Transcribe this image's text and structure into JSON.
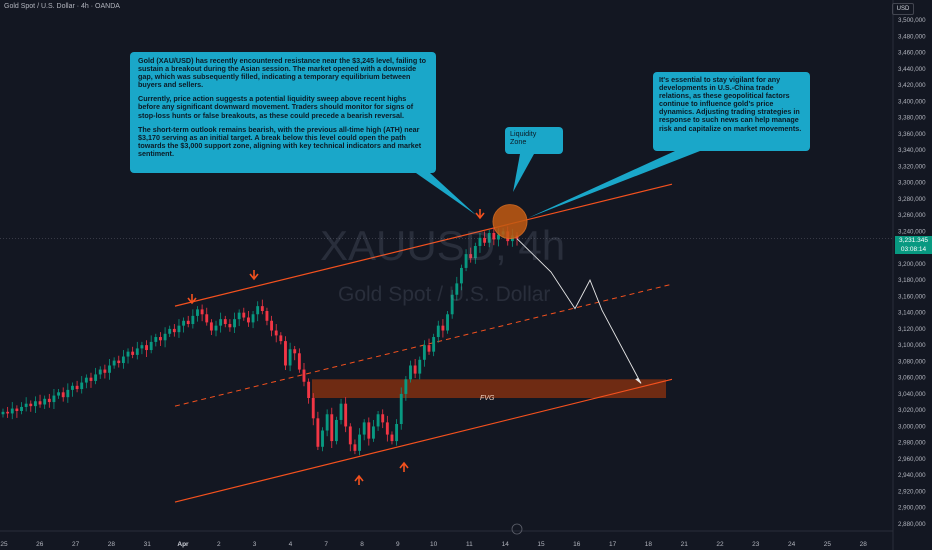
{
  "header": {
    "title": "Gold Spot / U.S. Dollar · 4h · OANDA",
    "currency": "USD"
  },
  "watermark": {
    "symbol": "XAUUSD, 4h",
    "name": "Gold Spot / U.S. Dollar"
  },
  "callouts": {
    "left": [
      "Gold (XAU/USD) has recently encountered resistance near the $3,245 level, failing to sustain a breakout during the Asian session. The market opened with a downside gap, which was subsequently filled, indicating a temporary equilibrium between buyers and sellers.",
      "Currently, price action suggests a potential liquidity sweep above recent highs before any significant downward movement. Traders should monitor for signs of stop-loss hunts or false breakouts, as these could precede a bearish reversal.",
      "The short-term outlook remains bearish, with the previous all-time high (ATH) near $3,170 serving as an initial target. A break below this level could open the path towards the $3,000 support zone, aligning with key technical indicators and market sentiment."
    ],
    "right": "It's essential to stay vigilant for any developments in U.S.-China trade relations, as these geopolitical factors continue to influence gold's price dynamics. Adjusting trading strategies in response to such news can help manage risk and capitalize on market movements.",
    "zone": "Liquidity\nZone"
  },
  "fvg_label": "FVG",
  "last_price": {
    "price": "3,231.345",
    "countdown": "03:08:14"
  },
  "colors": {
    "background": "#131722",
    "bull": "#089981",
    "bear": "#f23645",
    "channel": "#f4511e",
    "callout": "#1aa7c9",
    "fvg": "#7a2e12",
    "liquidity_zone": "#c25a12"
  },
  "chart_data": {
    "type": "candlestick",
    "title": "Gold Spot / U.S. Dollar · 4h · OANDA",
    "currency": "USD",
    "timeframe": "4h",
    "x_axis_labels": [
      "25",
      "26",
      "27",
      "28",
      "31",
      "Apr",
      "2",
      "3",
      "4",
      "7",
      "8",
      "9",
      "10",
      "11",
      "14",
      "15",
      "16",
      "17",
      "18",
      "21",
      "22",
      "23",
      "24",
      "25",
      "28"
    ],
    "y_axis_labels": [
      "3,500,000",
      "3,480,000",
      "3,460,000",
      "3,440,000",
      "3,420,000",
      "3,400,000",
      "3,380,000",
      "3,360,000",
      "3,340,000",
      "3,320,000",
      "3,300,000",
      "3,280,000",
      "3,260,000",
      "3,240,000",
      "3,220,000",
      "3,200,000",
      "3,180,000",
      "3,160,000",
      "3,140,000",
      "3,120,000",
      "3,100,000",
      "3,080,000",
      "3,060,000",
      "3,040,000",
      "3,020,000",
      "3,000,000",
      "2,980,000",
      "2,960,000",
      "2,940,000",
      "2,920,000",
      "2,900,000",
      "2,880,000"
    ],
    "ylim": [
      2870,
      3510
    ],
    "grid": false,
    "candles_close": [
      3018,
      3016,
      3022,
      3019,
      3024,
      3028,
      3025,
      3031,
      3027,
      3034,
      3030,
      3038,
      3042,
      3036,
      3045,
      3050,
      3046,
      3054,
      3060,
      3056,
      3064,
      3070,
      3066,
      3075,
      3081,
      3078,
      3086,
      3092,
      3088,
      3096,
      3100,
      3094,
      3104,
      3110,
      3106,
      3114,
      3120,
      3116,
      3124,
      3130,
      3126,
      3136,
      3144,
      3138,
      3128,
      3118,
      3124,
      3132,
      3126,
      3122,
      3132,
      3140,
      3134,
      3128,
      3138,
      3148,
      3142,
      3130,
      3118,
      3112,
      3105,
      3075,
      3095,
      3090,
      3070,
      3055,
      3035,
      3010,
      2975,
      2995,
      3015,
      2982,
      3008,
      3028,
      3000,
      2978,
      2970,
      2990,
      3005,
      2985,
      3000,
      3015,
      3005,
      2990,
      2982,
      3003,
      3040,
      3058,
      3075,
      3065,
      3082,
      3100,
      3092,
      3110,
      3124,
      3118,
      3138,
      3162,
      3176,
      3195,
      3212,
      3207,
      3222,
      3232,
      3226,
      3238,
      3230,
      3236,
      3240,
      3228,
      3235,
      3231
    ],
    "last_price": 3231.345,
    "countdown": "03:08:14",
    "fvg_zone": {
      "label": "FVG",
      "from": 3035,
      "to": 3058
    },
    "liquidity_zone": {
      "label": "Liquidity Zone",
      "center": 3252
    },
    "projected_path": [
      3231,
      3190,
      3145,
      3180,
      3143,
      3053
    ],
    "channel": {
      "upper": [
        3148,
        3298
      ],
      "middle": [
        3025,
        3175
      ],
      "lower": [
        2907,
        3058
      ]
    }
  }
}
